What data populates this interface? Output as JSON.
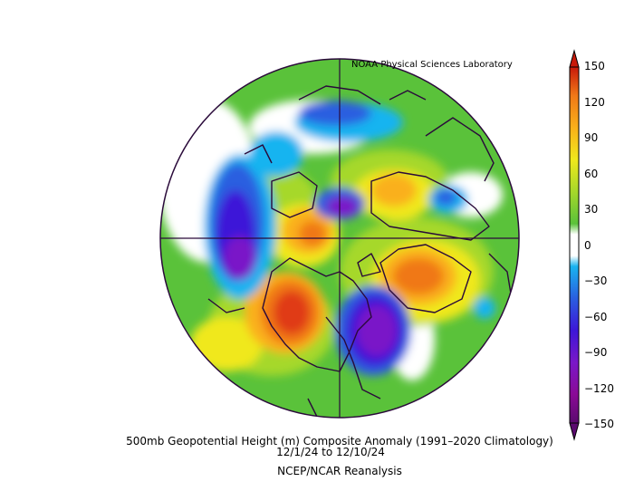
{
  "header": {
    "credit": "NOAA Physical Sciences Laboratory"
  },
  "caption": {
    "line1": "500mb Geopotential Height (m) Composite Anomaly (1991–2020 Climatology)",
    "line2": "12/1/24  to 12/10/24",
    "line3": "NCEP/NCAR Reanalysis"
  },
  "colorbar": {
    "ticks": [
      "150",
      "120",
      "90",
      "60",
      "30",
      "0",
      "−30",
      "−60",
      "−90",
      "−120",
      "−150"
    ],
    "colors": [
      "#5a0a6e",
      "#8a0a96",
      "#7a18c8",
      "#3d16d8",
      "#2a5ee0",
      "#19b4f0",
      "#ffffff",
      "#5ac23a",
      "#a6d82a",
      "#f0e81c",
      "#fab01a",
      "#f07818",
      "#e03a12",
      "#c81a0a"
    ]
  },
  "map": {
    "projection": "polar stereographic, North Pole",
    "colors": {
      "land_outline": "#2a0a3a",
      "background_positive": "#5ac23a"
    }
  }
}
